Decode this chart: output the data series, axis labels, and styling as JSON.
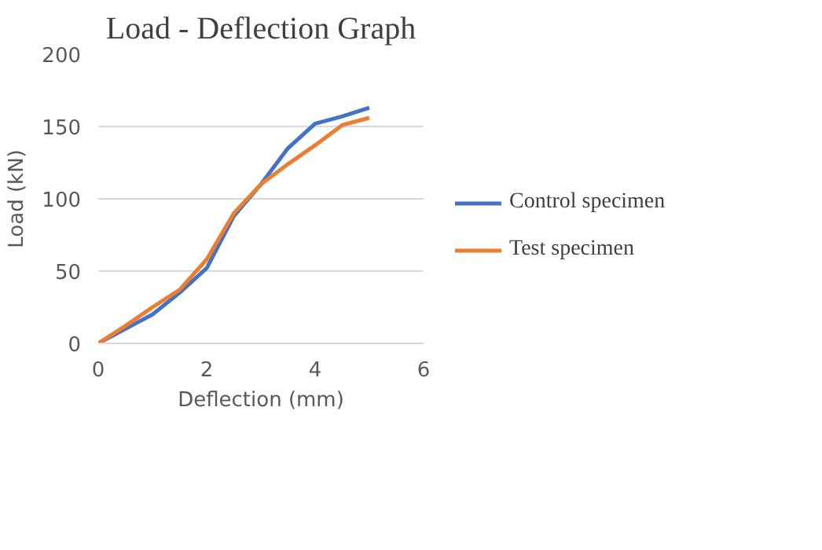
{
  "chart_data": {
    "type": "line",
    "title": "Load - Deflection Graph",
    "xlabel": "Deflection (mm)",
    "ylabel": "Load (kN)",
    "x": [
      0,
      0.5,
      1,
      1.5,
      2,
      2.5,
      3,
      3.5,
      4,
      4.5,
      5
    ],
    "series": [
      {
        "name": "Control specimen",
        "color": "#4472c4",
        "values": [
          0,
          10,
          20,
          35,
          52,
          88,
          110,
          135,
          152,
          157,
          163
        ]
      },
      {
        "name": "Test specimen",
        "color": "#ed7d31",
        "values": [
          0,
          12,
          25,
          37,
          58,
          90,
          110,
          124,
          137,
          151,
          156
        ]
      }
    ],
    "xlim": [
      0,
      6
    ],
    "xticks": [
      0,
      2,
      4,
      6
    ],
    "ylim": [
      0,
      200
    ],
    "yticks": [
      0,
      50,
      100,
      150,
      200
    ],
    "grid": "y",
    "legend": "right",
    "marker": "none",
    "line_style": "solid"
  }
}
